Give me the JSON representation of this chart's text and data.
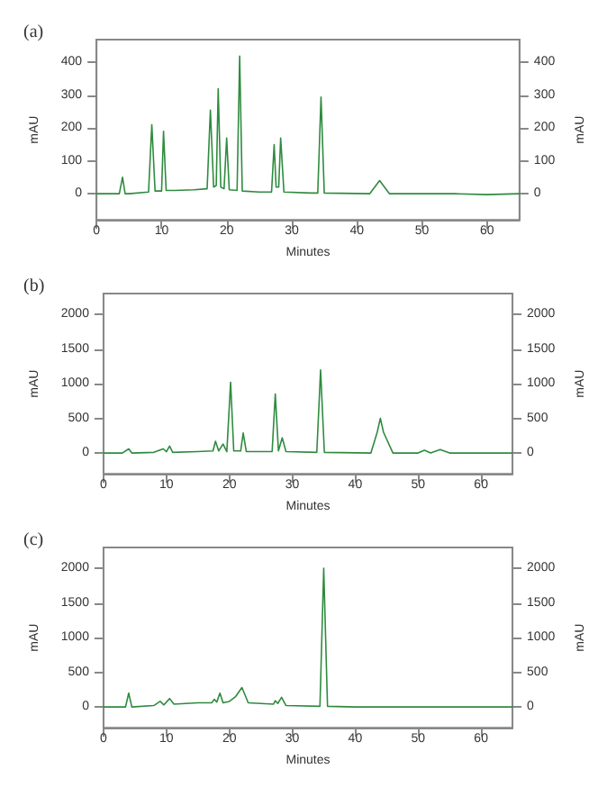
{
  "chart_data": [
    {
      "type": "line",
      "title": "(a)",
      "xlabel": "Minutes",
      "ylabel": "mAU",
      "y2label": "mAU",
      "color": "#2e8b3e",
      "grid": false,
      "marker": "none",
      "line_style": "solid",
      "x": [
        0,
        3.5,
        4,
        4.4,
        5,
        8,
        8.5,
        9,
        10,
        10.3,
        10.7,
        12,
        15,
        17,
        17.5,
        18,
        18.4,
        18.7,
        19.1,
        19.6,
        20,
        20.4,
        21.6,
        22,
        22.4,
        25,
        26.9,
        27.3,
        27.6,
        28,
        28.3,
        28.8,
        33,
        34,
        34.5,
        35,
        42,
        43.5,
        45,
        50,
        55,
        60,
        65
      ],
      "values": [
        0,
        0,
        50,
        0,
        0,
        5,
        210,
        8,
        8,
        190,
        10,
        10,
        12,
        15,
        255,
        20,
        25,
        320,
        20,
        15,
        170,
        12,
        10,
        420,
        8,
        5,
        5,
        150,
        20,
        20,
        170,
        5,
        2,
        2,
        295,
        2,
        0,
        40,
        0,
        0,
        0,
        -3,
        0
      ],
      "xlim": [
        0,
        65
      ],
      "xticks": [
        0,
        10,
        20,
        30,
        40,
        50,
        60
      ],
      "ylim": [
        -80,
        470
      ],
      "yticks": [
        0,
        100,
        200,
        300,
        400
      ],
      "y2lim": [
        -80,
        470
      ],
      "y2ticks": [
        0,
        100,
        200,
        300,
        400
      ]
    },
    {
      "type": "line",
      "title": "(b)",
      "xlabel": "Minutes",
      "ylabel": "mAU",
      "y2label": "mAU",
      "color": "#2e8b3e",
      "grid": false,
      "marker": "none",
      "line_style": "solid",
      "x": [
        0,
        3,
        4,
        4.5,
        8,
        9.5,
        10,
        10.5,
        11,
        15,
        17.4,
        17.8,
        18.3,
        19,
        19.6,
        20.2,
        20.7,
        21.8,
        22.2,
        22.7,
        26.8,
        27.3,
        27.8,
        28.4,
        29,
        33.9,
        34.5,
        35.1,
        42.5,
        43.5,
        44,
        44.5,
        46,
        50,
        51,
        52,
        53.5,
        55,
        60,
        65
      ],
      "values": [
        0,
        0,
        60,
        0,
        10,
        60,
        20,
        100,
        10,
        20,
        30,
        170,
        30,
        130,
        20,
        1020,
        30,
        30,
        290,
        20,
        20,
        850,
        30,
        220,
        20,
        10,
        1200,
        10,
        0,
        300,
        500,
        300,
        0,
        0,
        40,
        0,
        50,
        0,
        0,
        0
      ],
      "xlim": [
        0,
        65
      ],
      "xticks": [
        0,
        10,
        20,
        30,
        40,
        50,
        60
      ],
      "ylim": [
        -300,
        2300
      ],
      "yticks": [
        0,
        500,
        1000,
        1500,
        2000
      ],
      "y2lim": [
        -300,
        2300
      ],
      "y2ticks": [
        0,
        500,
        1000,
        1500,
        2000
      ]
    },
    {
      "type": "line",
      "title": "(c)",
      "xlabel": "Minutes",
      "ylabel": "mAU",
      "y2label": "mAU",
      "color": "#2e8b3e",
      "grid": false,
      "marker": "none",
      "line_style": "solid",
      "x": [
        0,
        3.5,
        4,
        4.5,
        8,
        9,
        9.6,
        10.5,
        11.2,
        15,
        17.2,
        17.6,
        18,
        18.5,
        19,
        19.5,
        20,
        21,
        22,
        23,
        27,
        27.3,
        27.7,
        28.3,
        29,
        34.4,
        35,
        35.6,
        40,
        50,
        60,
        65
      ],
      "values": [
        0,
        0,
        200,
        0,
        20,
        80,
        30,
        120,
        40,
        60,
        60,
        110,
        70,
        200,
        60,
        70,
        80,
        150,
        280,
        60,
        40,
        90,
        50,
        140,
        20,
        10,
        2000,
        10,
        0,
        0,
        0,
        0
      ],
      "xlim": [
        0,
        65
      ],
      "xticks": [
        0,
        10,
        20,
        30,
        40,
        50,
        60
      ],
      "ylim": [
        -300,
        2300
      ],
      "yticks": [
        0,
        500,
        1000,
        1500,
        2000
      ],
      "y2lim": [
        -300,
        2300
      ],
      "y2ticks": [
        0,
        500,
        1000,
        1500,
        2000
      ]
    }
  ]
}
